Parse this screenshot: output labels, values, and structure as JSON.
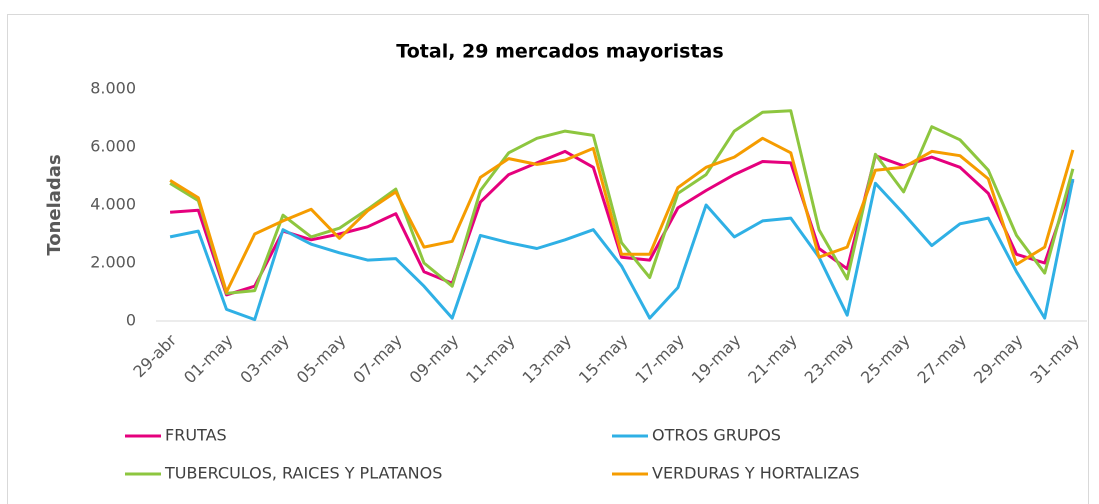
{
  "chart_data": {
    "type": "line",
    "title": "Total, 29 mercados mayoristas",
    "y_label": "Toneladas",
    "categories": [
      "29-abr",
      null,
      "01-may",
      null,
      "03-may",
      null,
      "05-may",
      null,
      "07-may",
      null,
      "09-may",
      null,
      "11-may",
      null,
      "13-may",
      null,
      "15-may",
      null,
      "17-may",
      null,
      "19-may",
      null,
      "21-may",
      null,
      "23-may",
      null,
      "25-may",
      null,
      "27-may",
      null,
      "29-may",
      null,
      "31-may"
    ],
    "series": [
      {
        "name": "FRUTAS",
        "color": "#e5007d",
        "values": [
          3750,
          3820,
          900,
          1200,
          3100,
          2800,
          3000,
          3250,
          3700,
          1700,
          1300,
          4100,
          5050,
          5450,
          5850,
          5300,
          2200,
          2100,
          3900,
          4500,
          5050,
          5500,
          5450,
          2500,
          1800,
          5700,
          5350,
          5650,
          5300,
          4400,
          2300,
          2000,
          4850
        ]
      },
      {
        "name": "OTROS GRUPOS",
        "color": "#2fb0e5",
        "values": [
          2900,
          3100,
          400,
          50,
          3150,
          2650,
          2350,
          2100,
          2150,
          1200,
          100,
          2950,
          2700,
          2500,
          2800,
          3150,
          1900,
          100,
          1150,
          4000,
          2900,
          3450,
          3550,
          2200,
          200,
          4750,
          3700,
          2600,
          3350,
          3550,
          1700,
          100,
          4900
        ]
      },
      {
        "name": "TUBERCULOS, RAICES Y PLATANOS",
        "color": "#8dc63f",
        "values": [
          4750,
          4150,
          950,
          1050,
          3650,
          2900,
          3200,
          3850,
          4550,
          2000,
          1200,
          4500,
          5800,
          6300,
          6550,
          6400,
          2700,
          1500,
          4400,
          5050,
          6550,
          7200,
          7250,
          3150,
          1450,
          5750,
          4450,
          6700,
          6250,
          5200,
          2950,
          1650,
          5250
        ]
      },
      {
        "name": "VERDURAS Y HORTALIZAS",
        "color": "#f59c00",
        "values": [
          4850,
          4250,
          1000,
          3000,
          3450,
          3850,
          2850,
          3800,
          4450,
          2550,
          2750,
          4950,
          5600,
          5400,
          5550,
          5950,
          2300,
          2300,
          4600,
          5300,
          5650,
          6300,
          5800,
          2200,
          2550,
          5200,
          5300,
          5850,
          5700,
          4900,
          1950,
          2550,
          5900
        ]
      }
    ],
    "ylim": [
      0,
      8000
    ],
    "yticks": [
      0,
      {
        "value": 2000,
        "label": "2.000"
      },
      {
        "value": 4000,
        "label": "4.000"
      },
      {
        "value": 6000,
        "label": "6.000"
      },
      {
        "value": 8000,
        "label": "8.000"
      }
    ],
    "grid": false,
    "legend": "bottom"
  }
}
